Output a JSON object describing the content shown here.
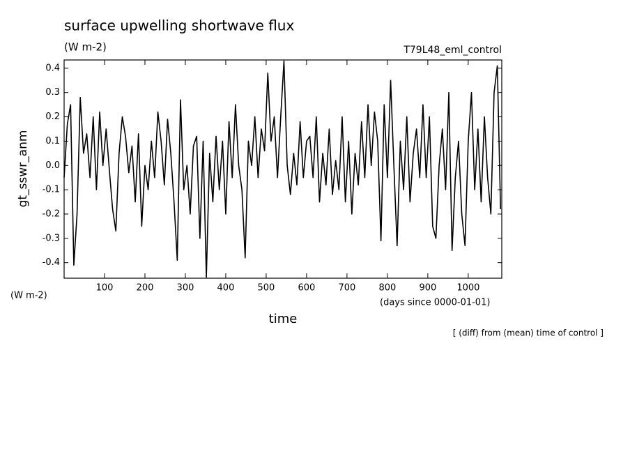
{
  "chart_data": {
    "type": "line",
    "title": "surface upwelling shortwave flux",
    "subtitle": "(W m-2)",
    "run_name": "T79L48_eml_control",
    "y_label": "gt_sswr_anm",
    "y_units": "(W m-2)",
    "x_label": "time",
    "x_units": "(days since 0000-01-01)",
    "note": "[ (diff) from (mean) time of control ]",
    "xlim": [
      0,
      1083
    ],
    "ylim": [
      -0.464,
      0.434
    ],
    "xticks": [
      100,
      200,
      300,
      400,
      500,
      600,
      700,
      800,
      900,
      1000
    ],
    "yticks": [
      -0.4,
      -0.3,
      -0.2,
      -0.1,
      {
        "value": 0,
        "label": "0.0"
      },
      0.1,
      0.2,
      0.3,
      0.4
    ],
    "x": [
      0,
      8,
      16,
      24,
      32,
      40,
      48,
      56,
      64,
      72,
      80,
      88,
      96,
      104,
      112,
      120,
      128,
      136,
      144,
      152,
      160,
      168,
      176,
      184,
      192,
      200,
      208,
      216,
      224,
      232,
      240,
      248,
      256,
      264,
      272,
      280,
      288,
      296,
      304,
      312,
      320,
      328,
      336,
      344,
      352,
      360,
      368,
      376,
      384,
      392,
      400,
      408,
      416,
      424,
      432,
      440,
      448,
      456,
      464,
      472,
      480,
      488,
      496,
      504,
      512,
      520,
      528,
      536,
      544,
      552,
      560,
      568,
      576,
      584,
      592,
      600,
      608,
      616,
      624,
      632,
      640,
      648,
      656,
      664,
      672,
      680,
      688,
      696,
      704,
      712,
      720,
      728,
      736,
      744,
      752,
      760,
      768,
      776,
      784,
      792,
      800,
      808,
      816,
      824,
      832,
      840,
      848,
      856,
      864,
      872,
      880,
      888,
      896,
      904,
      912,
      920,
      928,
      936,
      944,
      952,
      960,
      968,
      976,
      984,
      992,
      1000,
      1008,
      1016,
      1024,
      1032,
      1040,
      1048,
      1056,
      1064,
      1072,
      1080
    ],
    "series": [
      {
        "name": "gt_sswr_anm",
        "color": "#000000",
        "values": [
          -0.05,
          0.17,
          0.25,
          -0.41,
          -0.2,
          0.28,
          0.05,
          0.13,
          -0.05,
          0.2,
          -0.1,
          0.22,
          0.0,
          0.15,
          -0.02,
          -0.18,
          -0.27,
          0.05,
          0.2,
          0.12,
          -0.03,
          0.08,
          -0.15,
          0.13,
          -0.25,
          0.0,
          -0.1,
          0.1,
          -0.05,
          0.22,
          0.1,
          -0.08,
          0.19,
          0.05,
          -0.15,
          -0.39,
          0.27,
          -0.1,
          0.0,
          -0.2,
          0.08,
          0.12,
          -0.3,
          0.1,
          -0.46,
          0.05,
          -0.15,
          0.12,
          -0.1,
          0.1,
          -0.2,
          0.18,
          -0.05,
          0.25,
          0.0,
          -0.1,
          -0.38,
          0.1,
          0.0,
          0.2,
          -0.05,
          0.15,
          0.06,
          0.38,
          0.1,
          0.2,
          -0.05,
          0.2,
          0.43,
          0.0,
          -0.12,
          0.05,
          -0.08,
          0.18,
          -0.05,
          0.1,
          0.12,
          -0.05,
          0.2,
          -0.15,
          0.05,
          -0.08,
          0.15,
          -0.12,
          0.02,
          -0.1,
          0.2,
          -0.15,
          0.1,
          -0.2,
          0.05,
          -0.08,
          0.18,
          -0.05,
          0.25,
          0.0,
          0.22,
          0.1,
          -0.31,
          0.25,
          -0.05,
          0.35,
          0.0,
          -0.33,
          0.1,
          -0.1,
          0.2,
          -0.15,
          0.05,
          0.15,
          -0.05,
          0.25,
          -0.05,
          0.2,
          -0.25,
          -0.3,
          0.0,
          0.15,
          -0.1,
          0.3,
          -0.35,
          -0.05,
          0.1,
          -0.2,
          -0.33,
          0.1,
          0.3,
          -0.1,
          0.15,
          -0.15,
          0.2,
          -0.05,
          -0.2,
          0.3,
          0.41,
          -0.18
        ]
      }
    ]
  }
}
